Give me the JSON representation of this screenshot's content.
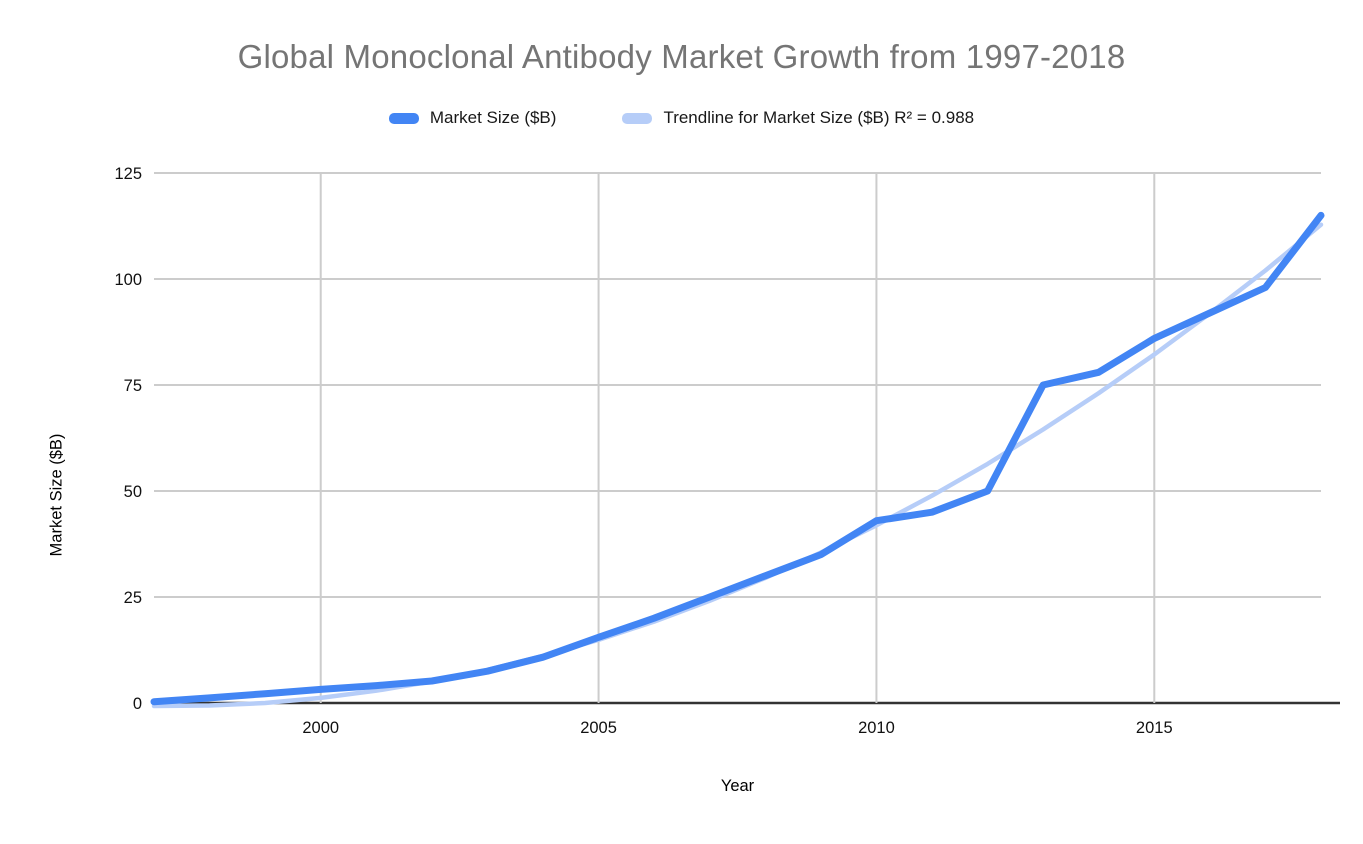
{
  "chart_data": {
    "type": "line",
    "title": "Global Monoclonal Antibody Market Growth from 1997-2018",
    "xlabel": "Year",
    "ylabel": "Market Size ($B)",
    "xlim": [
      1997,
      2018
    ],
    "ylim": [
      0,
      125
    ],
    "x_ticks": [
      2000,
      2005,
      2010,
      2015
    ],
    "y_ticks": [
      0,
      25,
      50,
      75,
      100,
      125
    ],
    "grid": true,
    "legend_position": "top",
    "x": [
      1997,
      1998,
      1999,
      2000,
      2001,
      2002,
      2003,
      2004,
      2005,
      2006,
      2007,
      2008,
      2009,
      2010,
      2011,
      2012,
      2013,
      2014,
      2015,
      2016,
      2017,
      2018
    ],
    "series": [
      {
        "name": "Market Size ($B)",
        "color": "#4285f4",
        "stroke_width": 7,
        "values": [
          0.3,
          1.2,
          2.2,
          3.2,
          4.1,
          5.2,
          7.5,
          10.8,
          15.5,
          20,
          25,
          30,
          35,
          43,
          45,
          50,
          75,
          78,
          86,
          92,
          98,
          115
        ]
      },
      {
        "name": "Trendline for Market Size ($B) R² = 0.988",
        "color": "#b6cdf8",
        "stroke_width": 4.5,
        "r_squared": 0.988,
        "values": [
          -0.7,
          -0.6,
          0.0,
          1.2,
          2.9,
          5.1,
          7.8,
          11.1,
          14.9,
          19.2,
          24.1,
          29.5,
          35.5,
          41.9,
          48.9,
          56.4,
          64.5,
          73.1,
          82.2,
          91.9,
          102.0,
          112.8
        ]
      }
    ],
    "colors": {
      "title_text": "#757575",
      "axis_text": "#111111",
      "gridline": "#cccccc",
      "baseline": "#333333",
      "background": "#ffffff"
    }
  }
}
